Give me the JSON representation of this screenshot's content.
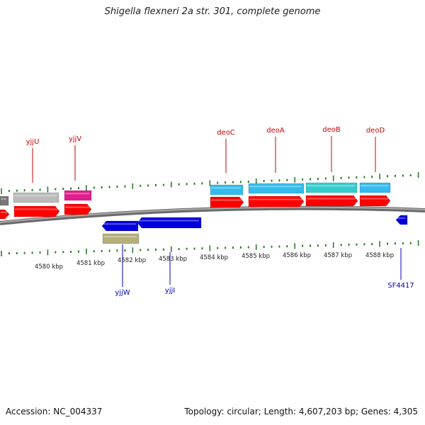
{
  "title": "Shigella flexneri 2a str. 301, complete genome",
  "footer": {
    "accession": "Accession: NC_004337",
    "summary": "Topology: circular; Length: 4,607,203 bp; Genes: 4,305"
  },
  "colors": {
    "backbone": "#808080",
    "tick": "#2a7a2a",
    "forward_label": "#cc0000",
    "reverse_label": "#0000bb",
    "red_cds": "#ff0000",
    "cyan_cds": "#33bbee",
    "teal_cds": "#33cccc",
    "gray_cds": "#bbbbbb",
    "magenta_cds": "#e0208a",
    "blue_cds": "#0000dd",
    "olive_cds": "#b5b07a"
  },
  "axis": {
    "unit": "kbp",
    "tick_labels": [
      "4580 kbp",
      "4581 kbp",
      "4582 kbp",
      "4583 kbp",
      "4584 kbp",
      "4585 kbp",
      "4586 kbp",
      "4587 kbp",
      "4588 kbp"
    ]
  },
  "genes": {
    "forward": [
      "yjjU",
      "yjjV",
      "deoC",
      "deoA",
      "deoB",
      "deoD"
    ],
    "reverse": [
      "yjjW",
      "yjjI",
      "SF4417"
    ]
  }
}
